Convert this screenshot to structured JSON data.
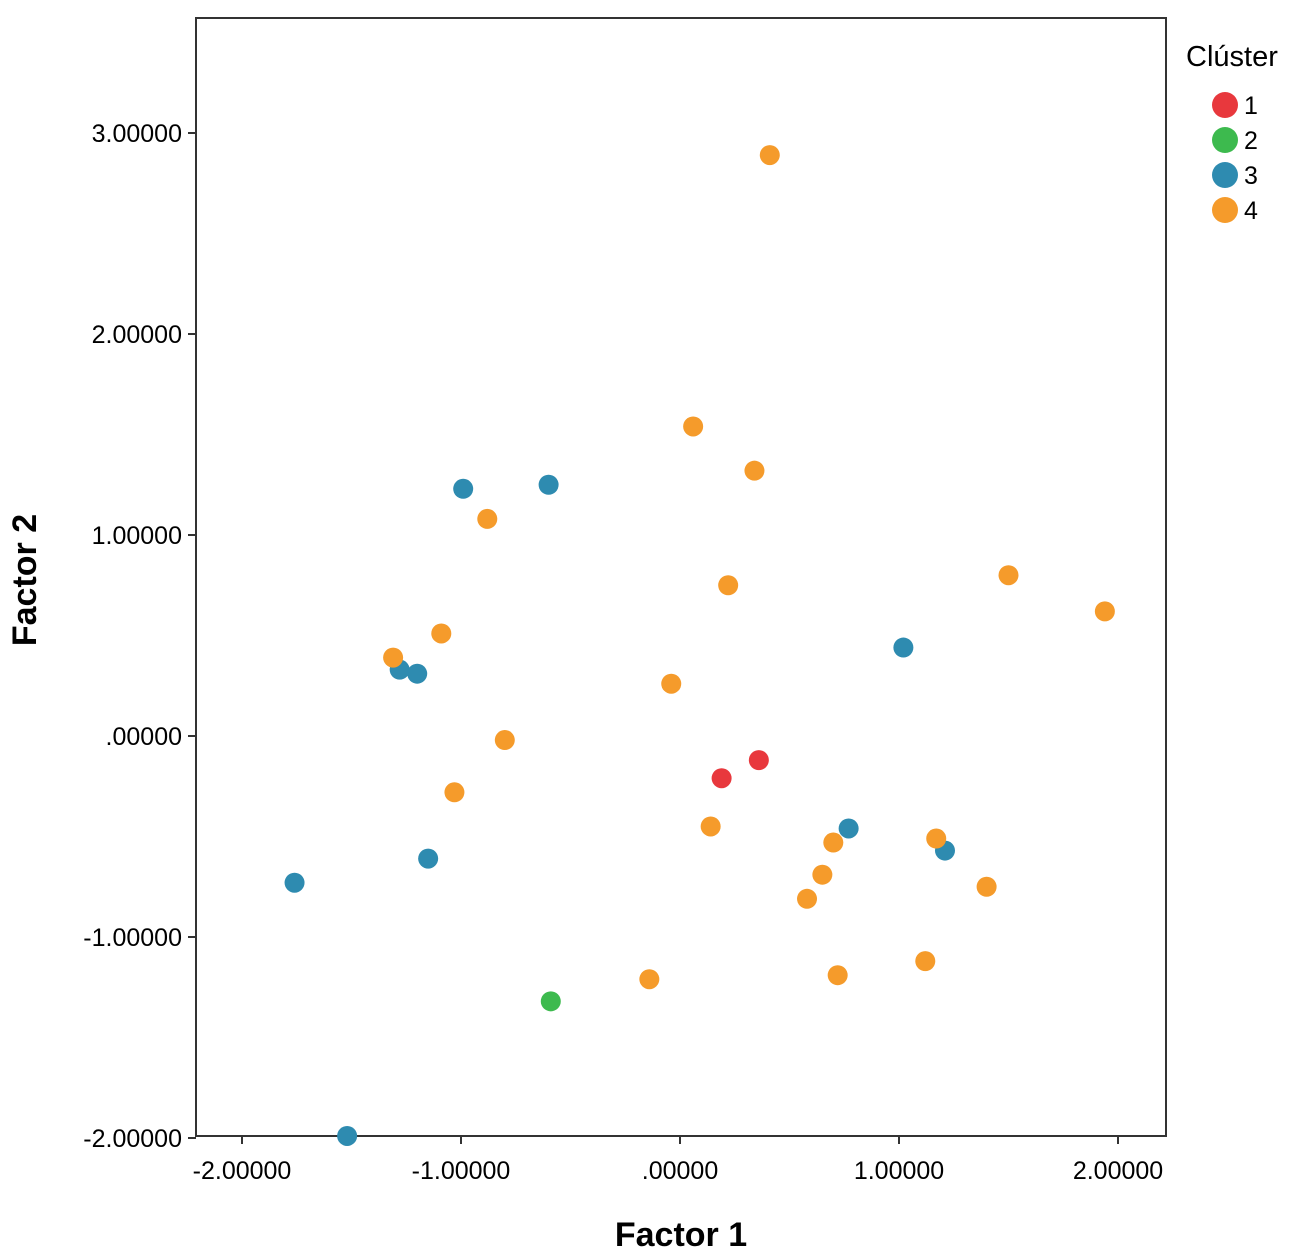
{
  "chart_data": {
    "type": "scatter",
    "xlabel": "Factor 1",
    "ylabel": "Factor 2",
    "xlim": [
      -2.2,
      2.2
    ],
    "ylim": [
      -2.0,
      3.55
    ],
    "xticks": [
      {
        "value": -2,
        "label": "-2.00000"
      },
      {
        "value": -1,
        "label": "-1.00000"
      },
      {
        "value": 0,
        "label": ".00000"
      },
      {
        "value": 1,
        "label": "1.00000"
      },
      {
        "value": 2,
        "label": "2.00000"
      }
    ],
    "yticks": [
      {
        "value": -2,
        "label": "-2.00000"
      },
      {
        "value": -1,
        "label": "-1.00000"
      },
      {
        "value": 0,
        "label": ".00000"
      },
      {
        "value": 1,
        "label": "1.00000"
      },
      {
        "value": 2,
        "label": "2.00000"
      },
      {
        "value": 3,
        "label": "3.00000"
      }
    ],
    "grid": false,
    "legend": {
      "title": "Clúster",
      "placement": "top-right-outside",
      "entries": [
        {
          "label": "1",
          "color": "#e8383d"
        },
        {
          "label": "2",
          "color": "#3dba4e"
        },
        {
          "label": "3",
          "color": "#2e8bb0"
        },
        {
          "label": "4",
          "color": "#f59b2b"
        }
      ]
    },
    "series": [
      {
        "cluster": "1",
        "color": "#e8383d",
        "points": [
          [
            0.19,
            -0.21
          ],
          [
            0.36,
            -0.12
          ]
        ]
      },
      {
        "cluster": "2",
        "color": "#3dba4e",
        "points": [
          [
            -0.59,
            -1.32
          ]
        ]
      },
      {
        "cluster": "3",
        "color": "#2e8bb0",
        "points": [
          [
            -0.99,
            1.23
          ],
          [
            -0.6,
            1.25
          ],
          [
            -1.28,
            0.33
          ],
          [
            -1.2,
            0.31
          ],
          [
            1.02,
            0.44
          ],
          [
            0.77,
            -0.46
          ],
          [
            1.21,
            -0.57
          ],
          [
            -1.15,
            -0.61
          ],
          [
            -1.76,
            -0.73
          ],
          [
            -1.52,
            -1.99
          ]
        ]
      },
      {
        "cluster": "4",
        "color": "#f59b2b",
        "points": [
          [
            0.41,
            2.89
          ],
          [
            0.06,
            1.54
          ],
          [
            0.34,
            1.32
          ],
          [
            -0.88,
            1.08
          ],
          [
            0.22,
            0.75
          ],
          [
            1.5,
            0.8
          ],
          [
            1.94,
            0.62
          ],
          [
            -1.09,
            0.51
          ],
          [
            -1.31,
            0.39
          ],
          [
            -0.04,
            0.26
          ],
          [
            -0.8,
            -0.02
          ],
          [
            -1.03,
            -0.28
          ],
          [
            0.14,
            -0.45
          ],
          [
            0.7,
            -0.53
          ],
          [
            1.17,
            -0.51
          ],
          [
            0.65,
            -0.69
          ],
          [
            0.58,
            -0.81
          ],
          [
            1.4,
            -0.75
          ],
          [
            0.72,
            -1.19
          ],
          [
            1.12,
            -1.12
          ],
          [
            -0.14,
            -1.21
          ]
        ]
      }
    ]
  }
}
